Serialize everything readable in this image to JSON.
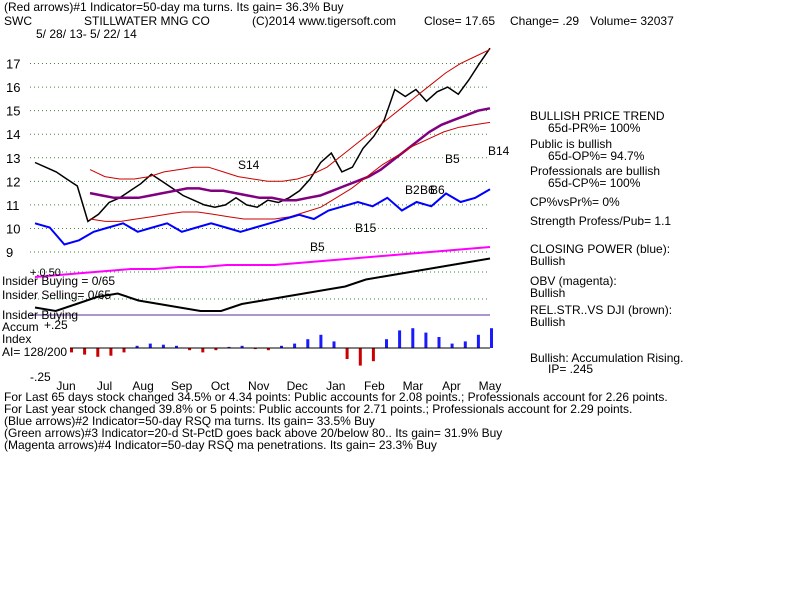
{
  "header": {
    "line1": "(Red arrows)#1 Indicator=50-day ma turns. Its gain= 36.3% Buy",
    "ticker": "SWC",
    "company": "STILLWATER MNG CO",
    "source": "(C)2014 www.tigersoft.com",
    "close": "Close= 17.65",
    "change": "Change= .29",
    "volume": "Volume= 32037",
    "date_range": "5/ 28/ 13- 5/ 22/ 14"
  },
  "chart_data": {
    "type": "line",
    "title": "STILLWATER MNG CO",
    "ylim": [
      9,
      18
    ],
    "y_ticks": [
      "9",
      "10",
      "11",
      "12",
      "13",
      "14",
      "15",
      "16",
      "17"
    ],
    "x_ticks": [
      "Jun",
      "Jul",
      "Aug",
      "Sep",
      "Oct",
      "Nov",
      "Dec",
      "Jan",
      "Feb",
      "Mar",
      "Apr",
      "May"
    ],
    "grid": true,
    "series": [
      {
        "name": "Price",
        "color": "#000000",
        "values": [
          12.8,
          12.6,
          12.4,
          12.1,
          11.8,
          10.3,
          10.6,
          11.1,
          11.3,
          11.6,
          11.9,
          12.3,
          12.0,
          11.7,
          11.4,
          11.2,
          11.0,
          10.9,
          11.0,
          11.3,
          11.0,
          10.9,
          11.2,
          11.1,
          11.3,
          11.6,
          12.1,
          12.8,
          13.2,
          12.4,
          12.6,
          13.4,
          13.9,
          14.6,
          15.9,
          15.6,
          15.9,
          15.4,
          15.8,
          16.0,
          15.7,
          16.3,
          17.0,
          17.65
        ]
      },
      {
        "name": "50-day ma",
        "color": "#800080",
        "values": [
          11.5,
          11.4,
          11.3,
          11.3,
          11.3,
          11.4,
          11.5,
          11.6,
          11.7,
          11.7,
          11.6,
          11.6,
          11.5,
          11.4,
          11.3,
          11.3,
          11.2,
          11.2,
          11.3,
          11.4,
          11.6,
          11.8,
          12.0,
          12.2,
          12.5,
          12.9,
          13.3,
          13.7,
          14.1,
          14.4,
          14.6,
          14.8,
          15.0,
          15.1
        ]
      },
      {
        "name": "Upper band",
        "color": "#cc0000",
        "values": [
          12.5,
          12.2,
          12.1,
          12.1,
          12.2,
          12.4,
          12.5,
          12.6,
          12.6,
          12.4,
          12.2,
          12.1,
          12.0,
          12.0,
          12.1,
          12.3,
          12.6,
          13.1,
          13.6,
          14.1,
          14.6,
          15.1,
          15.6,
          16.1,
          16.6,
          17.0,
          17.3,
          17.6
        ]
      },
      {
        "name": "Lower band",
        "color": "#cc0000",
        "values": [
          10.4,
          10.3,
          10.3,
          10.4,
          10.5,
          10.6,
          10.7,
          10.7,
          10.6,
          10.5,
          10.4,
          10.4,
          10.4,
          10.5,
          10.7,
          10.9,
          11.3,
          11.7,
          12.2,
          12.7,
          13.1,
          13.5,
          13.8,
          14.1,
          14.3,
          14.4,
          14.5
        ]
      }
    ],
    "signals": [
      {
        "label": "S14",
        "color": "#000000"
      },
      {
        "label": "B5",
        "color": "#000000"
      },
      {
        "label": "B15",
        "color": "#000000"
      },
      {
        "label": "B5",
        "color": "#000000"
      },
      {
        "label": "B14",
        "color": "#000000"
      },
      {
        "label": "B2",
        "color": "#000000"
      },
      {
        "label": "B6",
        "color": "#000000"
      },
      {
        "label": "B6",
        "color": "#000000"
      }
    ],
    "indicators": {
      "closing_power": {
        "name": "Closing Power",
        "color": "#0000ff",
        "values": [
          0.55,
          0.5,
          0.3,
          0.35,
          0.45,
          0.5,
          0.55,
          0.45,
          0.5,
          0.55,
          0.45,
          0.5,
          0.55,
          0.5,
          0.45,
          0.5,
          0.55,
          0.6,
          0.65,
          0.6,
          0.7,
          0.75,
          0.8,
          0.75,
          0.85,
          0.7,
          0.8,
          0.75,
          0.9,
          0.8,
          0.85,
          0.95
        ]
      },
      "obv": {
        "name": "OBV",
        "color": "#ff00ff",
        "values": [
          0.2,
          0.25,
          0.3,
          0.35,
          0.4,
          0.4,
          0.45,
          0.45,
          0.5,
          0.5,
          0.5,
          0.55,
          0.6,
          0.65,
          0.7,
          0.75,
          0.8,
          0.85,
          0.9,
          0.95
        ]
      },
      "rel_strength": {
        "name": "Rel. Str. vs DJI",
        "color": "#000000",
        "values": [
          0.25,
          0.2,
          0.3,
          0.4,
          0.45,
          0.35,
          0.3,
          0.25,
          0.2,
          0.2,
          0.3,
          0.35,
          0.4,
          0.45,
          0.5,
          0.55,
          0.65,
          0.7,
          0.75,
          0.8,
          0.85,
          0.9,
          0.95
        ]
      },
      "accum_index": {
        "name": "Accumulation Index",
        "values": [
          -0.2,
          -0.3,
          -0.4,
          -0.35,
          -0.2,
          0.1,
          0.2,
          0.15,
          0.1,
          -0.1,
          -0.2,
          -0.1,
          0.05,
          0.1,
          -0.05,
          -0.1,
          0.1,
          0.2,
          0.4,
          0.6,
          0.3,
          -0.5,
          -0.8,
          -0.6,
          0.4,
          0.8,
          0.9,
          0.7,
          0.5,
          0.2,
          0.3,
          0.6,
          0.9
        ]
      }
    }
  },
  "insider": {
    "buying": "Insider Buying = 0/65",
    "selling": "Insider Selling= 0/65",
    "buying_short": "Insider Buying",
    "accum": "Accum",
    "accum_level": "+.25",
    "index": "Index",
    "ai": "AI= 128/200",
    "minus": "-.25",
    "extra": "+.0.50"
  },
  "side_panel": {
    "bullish_trend": "BULLISH PRICE TREND",
    "pr": "65d-PR%= 100%",
    "public_bullish": "Public is bullish",
    "op": "65d-OP%= 94.7%",
    "pros_bullish": "Professionals are bullish",
    "cp": "65d-CP%= 100%",
    "cpvspr": "CP%vsPr%= 0%",
    "strength": "Strength Profess/Pub= 1.1",
    "closing_power": "CLOSING POWER (blue):",
    "closing_power_val": "Bullish",
    "obv": "OBV (magenta):",
    "obv_val": "Bullish",
    "relstr": "REL.STR..VS DJI (brown):",
    "relstr_val": "Bullish",
    "accum": "Bullish: Accumulation Rising.",
    "ip": "IP= .245"
  },
  "footer": {
    "line1": "For Last 65 days stock changed 34.5% or 4.34 points: Public accounts for 2.08 points.; Professionals account for 2.26 points.",
    "line2": "For Last year stock changed 39.8% or 5 points: Public accounts for 2.71 points.; Professionals account for 2.29 points.",
    "line3": "(Blue arrows)#2 Indicator=50-day RSQ ma turns. Its gain= 33.5% Buy",
    "line4": "(Green arrows)#3 Indicator=20-d St-PctD goes back above 20/below 80.. Its gain= 31.9% Buy",
    "line5": "(Magenta arrows)#4 Indicator=50-day RSQ ma penetrations. Its gain= 23.3% Buy"
  }
}
